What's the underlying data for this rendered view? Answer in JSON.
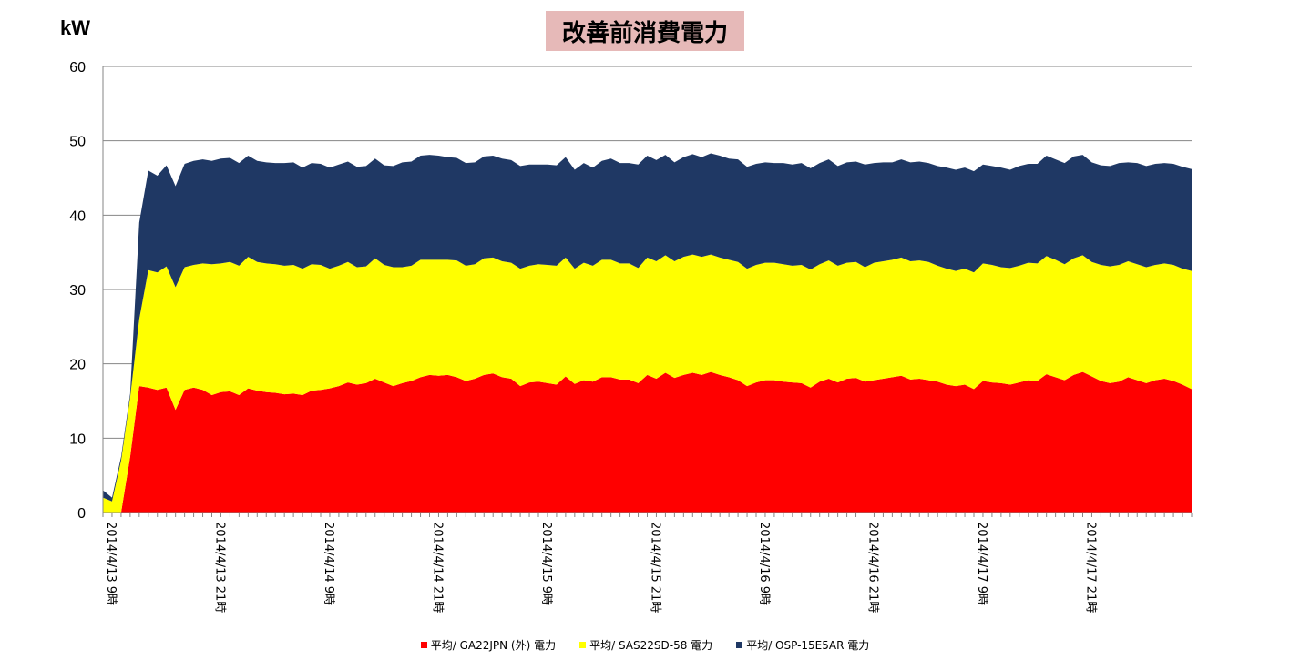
{
  "chart_data": {
    "type": "area",
    "stacked": true,
    "title": "改善前消費電力",
    "ylabel": "kW",
    "ylim": [
      0,
      60
    ],
    "yticks": [
      0,
      10,
      20,
      30,
      40,
      50,
      60
    ],
    "grid": true,
    "legend_position": "bottom",
    "x_tick_labels": [
      "2014/4/13 9時",
      "2014/4/13 21時",
      "2014/4/14 9時",
      "2014/4/14 21時",
      "2014/4/15 9時",
      "2014/4/15 21時",
      "2014/4/16 9時",
      "2014/4/16 21時",
      "2014/4/17 9時",
      "2014/4/17 21時"
    ],
    "series": [
      {
        "name": "平均/ GA22JPN (外)  電力",
        "color": "#ff0000",
        "values": [
          0,
          0,
          0,
          7.5,
          17,
          16.8,
          16.5,
          16.8,
          13.8,
          16.5,
          16.8,
          16.5,
          15.8,
          16.2,
          16.3,
          15.8,
          16.7,
          16.4,
          16.2,
          16.1,
          15.9,
          16.0,
          15.8,
          16.4,
          16.5,
          16.7,
          17.0,
          17.5,
          17.2,
          17.4,
          18.0,
          17.5,
          17.0,
          17.4,
          17.7,
          18.2,
          18.5,
          18.4,
          18.5,
          18.2,
          17.7,
          18.0,
          18.5,
          18.7,
          18.2,
          18.0,
          17.0,
          17.5,
          17.6,
          17.4,
          17.2,
          18.3,
          17.3,
          17.8,
          17.6,
          18.2,
          18.2,
          17.9,
          17.9,
          17.4,
          18.5,
          18.0,
          18.8,
          18.1,
          18.5,
          18.8,
          18.5,
          18.9,
          18.5,
          18.2,
          17.8,
          17.0,
          17.5,
          17.8,
          17.8,
          17.6,
          17.5,
          17.4,
          16.8,
          17.6,
          18.0,
          17.5,
          18.0,
          18.1,
          17.6,
          17.8,
          18.0,
          18.2,
          18.4,
          17.9,
          18.0,
          17.8,
          17.6,
          17.2,
          17.0,
          17.2,
          16.6,
          17.7,
          17.5,
          17.4,
          17.2,
          17.5,
          17.8,
          17.7,
          18.6,
          18.2,
          17.8,
          18.5,
          18.9,
          18.3,
          17.7,
          17.4,
          17.6,
          18.2,
          17.8,
          17.4,
          17.8,
          18.0,
          17.7,
          17.2,
          16.6
        ]
      },
      {
        "name": "平均/ SAS22SD-58 電力",
        "color": "#ffff00",
        "values": [
          2.0,
          1.5,
          7.0,
          8.0,
          9.0,
          15.8,
          15.8,
          16.3,
          16.5,
          16.5,
          16.5,
          17.0,
          17.6,
          17.3,
          17.4,
          17.4,
          17.7,
          17.3,
          17.3,
          17.3,
          17.3,
          17.3,
          17.0,
          17.0,
          16.8,
          16.1,
          16.2,
          16.2,
          15.8,
          15.7,
          16.2,
          15.8,
          16.0,
          15.6,
          15.5,
          15.8,
          15.5,
          15.6,
          15.5,
          15.7,
          15.5,
          15.4,
          15.7,
          15.6,
          15.6,
          15.6,
          15.8,
          15.7,
          15.8,
          15.9,
          16.0,
          16.0,
          15.5,
          15.8,
          15.6,
          15.8,
          15.8,
          15.6,
          15.6,
          15.5,
          15.8,
          15.8,
          15.8,
          15.7,
          15.9,
          15.9,
          15.9,
          15.8,
          15.8,
          15.8,
          15.9,
          15.8,
          15.8,
          15.8,
          15.8,
          15.8,
          15.7,
          15.9,
          15.9,
          15.8,
          15.9,
          15.7,
          15.6,
          15.6,
          15.4,
          15.8,
          15.8,
          15.8,
          15.9,
          15.9,
          15.9,
          15.9,
          15.6,
          15.6,
          15.5,
          15.6,
          15.7,
          15.8,
          15.8,
          15.6,
          15.7,
          15.7,
          15.8,
          15.8,
          15.9,
          15.8,
          15.6,
          15.7,
          15.7,
          15.4,
          15.6,
          15.7,
          15.7,
          15.6,
          15.6,
          15.6,
          15.5,
          15.5,
          15.6,
          15.6,
          15.9
        ]
      },
      {
        "name": "平均/ OSP-15E5AR 電力",
        "color": "#1f3864",
        "values": [
          1.0,
          0.5,
          0.5,
          0.5,
          13.0,
          13.4,
          13.0,
          13.6,
          13.6,
          13.9,
          14.0,
          14.0,
          13.9,
          14.1,
          14.0,
          13.8,
          13.6,
          13.6,
          13.6,
          13.6,
          13.8,
          13.8,
          13.6,
          13.6,
          13.6,
          13.6,
          13.6,
          13.5,
          13.5,
          13.5,
          13.4,
          13.4,
          13.6,
          14.1,
          14.0,
          14.0,
          14.1,
          14.0,
          13.8,
          13.8,
          13.8,
          13.7,
          13.7,
          13.7,
          13.8,
          13.8,
          13.8,
          13.6,
          13.4,
          13.5,
          13.5,
          13.5,
          13.3,
          13.4,
          13.2,
          13.3,
          13.6,
          13.5,
          13.5,
          13.9,
          13.7,
          13.6,
          13.5,
          13.3,
          13.4,
          13.5,
          13.4,
          13.6,
          13.7,
          13.6,
          13.8,
          13.7,
          13.6,
          13.5,
          13.4,
          13.6,
          13.6,
          13.7,
          13.6,
          13.6,
          13.6,
          13.4,
          13.5,
          13.5,
          13.8,
          13.4,
          13.3,
          13.1,
          13.2,
          13.3,
          13.3,
          13.3,
          13.4,
          13.6,
          13.6,
          13.6,
          13.6,
          13.3,
          13.3,
          13.4,
          13.2,
          13.4,
          13.3,
          13.4,
          13.5,
          13.5,
          13.6,
          13.7,
          13.5,
          13.4,
          13.4,
          13.5,
          13.7,
          13.3,
          13.6,
          13.6,
          13.6,
          13.5,
          13.6,
          13.7,
          13.7
        ]
      }
    ]
  }
}
